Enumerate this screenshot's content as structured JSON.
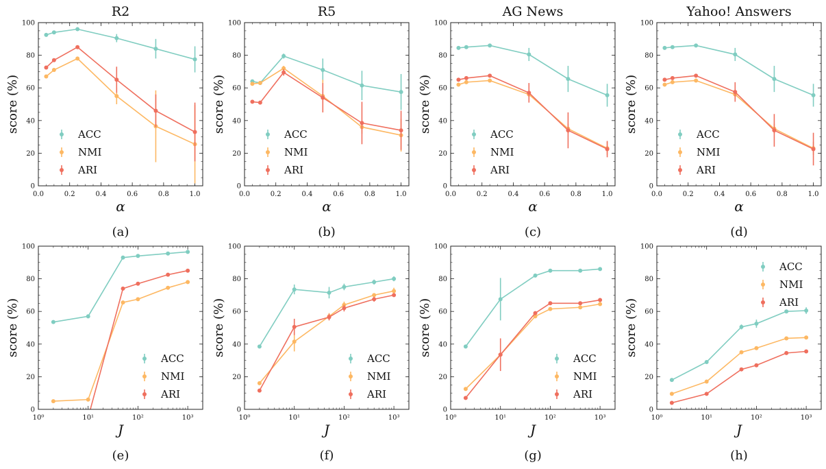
{
  "colors": {
    "ACC": "#80cdc1",
    "NMI": "#fdb863",
    "ARI": "#ef6f5e"
  },
  "chart_data": [
    {
      "type": "line",
      "panel_label": "(a)",
      "title": "R2",
      "xlabel": "α",
      "ylabel": "score (%)",
      "xscale": "linear",
      "xlim": [
        0.0,
        1.05
      ],
      "ylim": [
        0,
        100
      ],
      "xticks": [
        "0.0",
        "0.2",
        "0.4",
        "0.6",
        "0.8",
        "1.0"
      ],
      "yticks": [
        "0",
        "20",
        "40",
        "60",
        "80",
        "100"
      ],
      "legend_position": "lower-left",
      "x": [
        0.05,
        0.1,
        0.25,
        0.5,
        0.75,
        1.0
      ],
      "series": [
        {
          "name": "ACC",
          "values": [
            92.5,
            94,
            96,
            90.5,
            84,
            77.5
          ],
          "errors": [
            1,
            1,
            1,
            2.5,
            6,
            8
          ]
        },
        {
          "name": "NMI",
          "values": [
            67,
            71,
            78,
            55,
            36.5,
            25.5
          ],
          "errors": [
            1,
            1,
            1,
            5,
            22,
            24
          ]
        },
        {
          "name": "ARI",
          "values": [
            72.5,
            77,
            85,
            65,
            46,
            33
          ],
          "errors": [
            1,
            1,
            1,
            8,
            10,
            18
          ]
        }
      ]
    },
    {
      "type": "line",
      "panel_label": "(b)",
      "title": "R5",
      "xlabel": "α",
      "ylabel": "score (%)",
      "xscale": "linear",
      "xlim": [
        0.0,
        1.05
      ],
      "ylim": [
        0,
        100
      ],
      "xticks": [
        "0.0",
        "0.2",
        "0.4",
        "0.6",
        "0.8",
        "1.0"
      ],
      "yticks": [
        "0",
        "20",
        "40",
        "60",
        "80",
        "100"
      ],
      "legend_position": "lower-left",
      "x": [
        0.05,
        0.1,
        0.25,
        0.5,
        0.75,
        1.0
      ],
      "series": [
        {
          "name": "ACC",
          "values": [
            64,
            63,
            79.5,
            71,
            61.5,
            57.5
          ],
          "errors": [
            1,
            1,
            1.5,
            7,
            9,
            11
          ]
        },
        {
          "name": "NMI",
          "values": [
            62.5,
            63,
            72,
            55,
            36,
            31
          ],
          "errors": [
            1,
            1,
            1.5,
            10,
            4,
            10
          ]
        },
        {
          "name": "ARI",
          "values": [
            51.5,
            51,
            69.5,
            54,
            38.5,
            34
          ],
          "errors": [
            1,
            1,
            2,
            9,
            13,
            12
          ]
        }
      ]
    },
    {
      "type": "line",
      "panel_label": "(c)",
      "title": "AG News",
      "xlabel": "α",
      "ylabel": "score (%)",
      "xscale": "linear",
      "xlim": [
        0.0,
        1.05
      ],
      "ylim": [
        0,
        100
      ],
      "xticks": [
        "0.0",
        "0.2",
        "0.4",
        "0.6",
        "0.8",
        "1.0"
      ],
      "yticks": [
        "0",
        "20",
        "40",
        "60",
        "80",
        "100"
      ],
      "legend_position": "lower-left",
      "x": [
        0.05,
        0.1,
        0.25,
        0.5,
        0.75,
        1.0
      ],
      "series": [
        {
          "name": "ACC",
          "values": [
            84.5,
            85,
            86,
            80.5,
            65.5,
            55.5
          ],
          "errors": [
            1,
            1,
            1,
            4,
            8,
            7
          ]
        },
        {
          "name": "NMI",
          "values": [
            62,
            63.5,
            64.5,
            56,
            35,
            23
          ],
          "errors": [
            1,
            1,
            1,
            3,
            3,
            4
          ]
        },
        {
          "name": "ARI",
          "values": [
            65,
            66,
            67.5,
            57,
            34,
            22.5
          ],
          "errors": [
            1,
            1,
            1,
            6,
            11,
            5
          ]
        }
      ]
    },
    {
      "type": "line",
      "panel_label": "(d)",
      "title": "Yahoo! Answers",
      "xlabel": "α",
      "ylabel": "score (%)",
      "xscale": "linear",
      "xlim": [
        0.0,
        1.05
      ],
      "ylim": [
        0,
        100
      ],
      "xticks": [
        "0.0",
        "0.2",
        "0.4",
        "0.6",
        "0.8",
        "1.0"
      ],
      "yticks": [
        "0",
        "20",
        "40",
        "60",
        "80",
        "100"
      ],
      "legend_position": "lower-left",
      "x": [
        0.05,
        0.1,
        0.25,
        0.5,
        0.75,
        1.0
      ],
      "series": [
        {
          "name": "ACC",
          "values": [
            84.5,
            85,
            86,
            80.5,
            65.5,
            55.5
          ],
          "errors": [
            1,
            1,
            1,
            4,
            8,
            7
          ]
        },
        {
          "name": "NMI",
          "values": [
            62,
            63.5,
            64.5,
            56,
            35,
            23
          ],
          "errors": [
            1,
            1,
            1,
            3,
            3,
            4
          ]
        },
        {
          "name": "ARI",
          "values": [
            65,
            66,
            67.5,
            57.5,
            34,
            22.5
          ],
          "errors": [
            1,
            1,
            1,
            6,
            10,
            10
          ]
        }
      ]
    },
    {
      "type": "line",
      "panel_label": "(e)",
      "title": "",
      "xlabel": "J",
      "ylabel": "score (%)",
      "xscale": "log",
      "xlim": [
        1,
        2000
      ],
      "ylim": [
        0,
        100
      ],
      "xticks": [
        "10⁰",
        "10¹",
        "10²",
        "10³"
      ],
      "yticks": [
        "0",
        "20",
        "40",
        "60",
        "80",
        "100"
      ],
      "legend_position": "lower-right",
      "x": [
        2,
        10,
        50,
        100,
        400,
        1000
      ],
      "series": [
        {
          "name": "ACC",
          "values": [
            53.5,
            57,
            93,
            94,
            95.5,
            96.5
          ],
          "errors": [
            0.5,
            0.5,
            1,
            1,
            1,
            1
          ]
        },
        {
          "name": "NMI",
          "values": [
            5,
            6,
            65.5,
            67.5,
            74.5,
            78
          ],
          "errors": [
            0.5,
            0.5,
            1,
            1,
            1,
            1
          ]
        },
        {
          "name": "ARI",
          "values": [
            -5,
            -5,
            74,
            77,
            82.5,
            85
          ],
          "errors": [
            0.5,
            0.5,
            1,
            1,
            1,
            1
          ]
        }
      ]
    },
    {
      "type": "line",
      "panel_label": "(f)",
      "title": "",
      "xlabel": "J",
      "ylabel": "score (%)",
      "xscale": "log",
      "xlim": [
        1,
        2000
      ],
      "ylim": [
        0,
        100
      ],
      "xticks": [
        "10⁰",
        "10¹",
        "10²",
        "10³"
      ],
      "yticks": [
        "0",
        "20",
        "40",
        "60",
        "80",
        "100"
      ],
      "legend_position": "lower-right",
      "x": [
        2,
        10,
        50,
        100,
        400,
        1000
      ],
      "series": [
        {
          "name": "ACC",
          "values": [
            38.5,
            73.5,
            71.5,
            75,
            78,
            80
          ],
          "errors": [
            1,
            3,
            3.5,
            2,
            1.5,
            1.5
          ]
        },
        {
          "name": "NMI",
          "values": [
            16,
            41.5,
            57,
            64,
            70,
            72.5
          ],
          "errors": [
            1,
            6,
            2,
            2,
            1,
            2
          ]
        },
        {
          "name": "ARI",
          "values": [
            11.5,
            50.5,
            56.5,
            62,
            67.5,
            70
          ],
          "errors": [
            1,
            5,
            2,
            2,
            1.5,
            1
          ]
        }
      ]
    },
    {
      "type": "line",
      "panel_label": "(g)",
      "title": "",
      "xlabel": "J",
      "ylabel": "score (%)",
      "xscale": "log",
      "xlim": [
        1,
        2000
      ],
      "ylim": [
        0,
        100
      ],
      "xticks": [
        "10⁰",
        "10¹",
        "10²",
        "10³"
      ],
      "yticks": [
        "0",
        "20",
        "40",
        "60",
        "80",
        "100"
      ],
      "legend_position": "lower-right",
      "x": [
        2,
        10,
        50,
        100,
        400,
        1000
      ],
      "series": [
        {
          "name": "ACC",
          "values": [
            38.5,
            67.5,
            82,
            85,
            85,
            86
          ],
          "errors": [
            0.5,
            13,
            1,
            1,
            1,
            1
          ]
        },
        {
          "name": "NMI",
          "values": [
            12.5,
            33.5,
            57,
            61.5,
            62.5,
            64.5
          ],
          "errors": [
            0.5,
            1,
            1,
            1,
            1,
            1
          ]
        },
        {
          "name": "ARI",
          "values": [
            7,
            33.5,
            59,
            65,
            65,
            67
          ],
          "errors": [
            0.5,
            10,
            1,
            1,
            1,
            1
          ]
        }
      ]
    },
    {
      "type": "line",
      "panel_label": "(h)",
      "title": "",
      "xlabel": "J",
      "ylabel": "score (%)",
      "xscale": "log",
      "xlim": [
        1,
        2000
      ],
      "ylim": [
        0,
        100
      ],
      "xticks": [
        "10⁰",
        "10¹",
        "10²",
        "10³"
      ],
      "yticks": [
        "0",
        "20",
        "40",
        "60",
        "80",
        "100"
      ],
      "legend_position": "upper-right",
      "x": [
        2,
        10,
        50,
        100,
        400,
        1000
      ],
      "series": [
        {
          "name": "ACC",
          "values": [
            18,
            29,
            50.5,
            52.5,
            60,
            60.5
          ],
          "errors": [
            1,
            1,
            1.5,
            2.5,
            1,
            2
          ]
        },
        {
          "name": "NMI",
          "values": [
            9.5,
            17,
            35,
            37.5,
            43.5,
            44
          ],
          "errors": [
            1,
            1,
            1,
            1,
            1,
            1
          ]
        },
        {
          "name": "ARI",
          "values": [
            4,
            9.5,
            24.5,
            27,
            34.5,
            35.5
          ],
          "errors": [
            1,
            1,
            1,
            1,
            1,
            1
          ]
        }
      ]
    }
  ]
}
